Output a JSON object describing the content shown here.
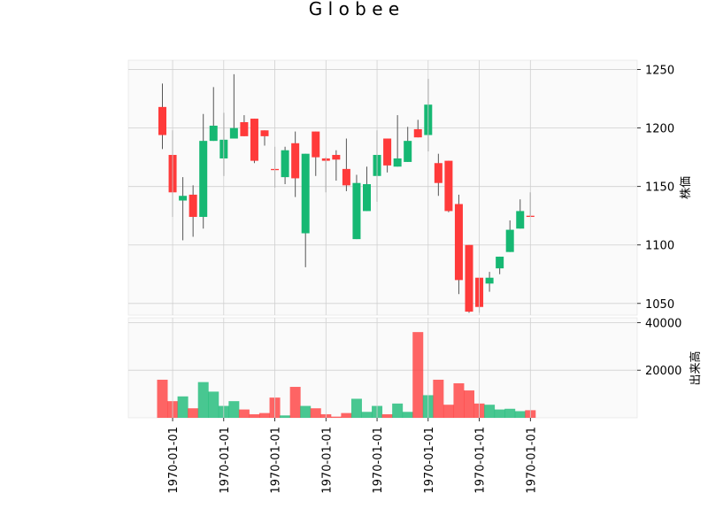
{
  "chart_data": {
    "type": "candlestick",
    "title": "Globee",
    "title_display": "G l o b e e",
    "price_panel": {
      "ylabel": "株価",
      "ylim": [
        1040,
        1258
      ],
      "yticks": [
        1050,
        1100,
        1150,
        1200,
        1250
      ]
    },
    "volume_panel": {
      "ylabel": "出来高",
      "ylim": [
        0,
        42000
      ],
      "yticks": [
        20000,
        40000
      ]
    },
    "x_tick_labels": [
      "1970-01-01",
      "1970-01-01",
      "1970-01-01",
      "1970-01-01",
      "1970-01-01",
      "1970-01-01",
      "1970-01-01",
      "1970-01-01"
    ],
    "x_tick_indices": [
      1,
      6,
      11,
      16,
      21,
      26,
      31,
      36
    ],
    "colors": {
      "up": "#16b873",
      "down": "#ff3a3a",
      "grid": "#d0d0d0",
      "background": "#fafafa"
    },
    "candles": [
      {
        "o": 1218,
        "h": 1238,
        "l": 1182,
        "c": 1194,
        "v": 16000
      },
      {
        "o": 1177,
        "h": 1198,
        "l": 1124,
        "c": 1145,
        "v": 7000
      },
      {
        "o": 1138,
        "h": 1158,
        "l": 1104,
        "c": 1142,
        "v": 9000
      },
      {
        "o": 1143,
        "h": 1151,
        "l": 1107,
        "c": 1124,
        "v": 4000
      },
      {
        "o": 1124,
        "h": 1212,
        "l": 1114,
        "c": 1189,
        "v": 15000
      },
      {
        "o": 1189,
        "h": 1235,
        "l": 1189,
        "c": 1202,
        "v": 11000
      },
      {
        "o": 1174,
        "h": 1213,
        "l": 1159,
        "c": 1190,
        "v": 5000
      },
      {
        "o": 1191,
        "h": 1246,
        "l": 1191,
        "c": 1200,
        "v": 7000
      },
      {
        "o": 1205,
        "h": 1211,
        "l": 1193,
        "c": 1193,
        "v": 3500
      },
      {
        "o": 1208,
        "h": 1208,
        "l": 1170,
        "c": 1172,
        "v": 1500
      },
      {
        "o": 1198,
        "h": 1198,
        "l": 1185,
        "c": 1193,
        "v": 2000
      },
      {
        "o": 1165,
        "h": 1184,
        "l": 1149,
        "c": 1164,
        "v": 8500
      },
      {
        "o": 1158,
        "h": 1184,
        "l": 1152,
        "c": 1181,
        "v": 1000
      },
      {
        "o": 1187,
        "h": 1197,
        "l": 1141,
        "c": 1157,
        "v": 13000
      },
      {
        "o": 1110,
        "h": 1178,
        "l": 1081,
        "c": 1178,
        "v": 5000
      },
      {
        "o": 1197,
        "h": 1197,
        "l": 1159,
        "c": 1175,
        "v": 4000
      },
      {
        "o": 1174,
        "h": 1175,
        "l": 1145,
        "c": 1172,
        "v": 1500
      },
      {
        "o": 1177,
        "h": 1181,
        "l": 1155,
        "c": 1173,
        "v": 500
      },
      {
        "o": 1165,
        "h": 1191,
        "l": 1146,
        "c": 1151,
        "v": 2000
      },
      {
        "o": 1105,
        "h": 1160,
        "l": 1105,
        "c": 1153,
        "v": 8000
      },
      {
        "o": 1129,
        "h": 1167,
        "l": 1129,
        "c": 1152,
        "v": 2500
      },
      {
        "o": 1159,
        "h": 1198,
        "l": 1137,
        "c": 1177,
        "v": 5000
      },
      {
        "o": 1191,
        "h": 1191,
        "l": 1162,
        "c": 1168,
        "v": 1500
      },
      {
        "o": 1167,
        "h": 1211,
        "l": 1167,
        "c": 1174,
        "v": 6000
      },
      {
        "o": 1171,
        "h": 1201,
        "l": 1171,
        "c": 1189,
        "v": 2500
      },
      {
        "o": 1199,
        "h": 1207,
        "l": 1192,
        "c": 1192,
        "v": 36000
      },
      {
        "o": 1194,
        "h": 1242,
        "l": 1180,
        "c": 1220,
        "v": 9500
      },
      {
        "o": 1170,
        "h": 1178,
        "l": 1142,
        "c": 1153,
        "v": 16000
      },
      {
        "o": 1172,
        "h": 1172,
        "l": 1128,
        "c": 1129,
        "v": 5500
      },
      {
        "o": 1135,
        "h": 1143,
        "l": 1058,
        "c": 1070,
        "v": 14500
      },
      {
        "o": 1100,
        "h": 1100,
        "l": 1042,
        "c": 1043,
        "v": 11500
      },
      {
        "o": 1072,
        "h": 1072,
        "l": 1042,
        "c": 1047,
        "v": 6000
      },
      {
        "o": 1067,
        "h": 1077,
        "l": 1060,
        "c": 1072,
        "v": 5500
      },
      {
        "o": 1080,
        "h": 1090,
        "l": 1075,
        "c": 1090,
        "v": 3500
      },
      {
        "o": 1094,
        "h": 1121,
        "l": 1094,
        "c": 1113,
        "v": 3800
      },
      {
        "o": 1114,
        "h": 1139,
        "l": 1114,
        "c": 1129,
        "v": 2800
      },
      {
        "o": 1125,
        "h": 1145,
        "l": 1124,
        "c": 1124,
        "v": 3200
      }
    ]
  }
}
